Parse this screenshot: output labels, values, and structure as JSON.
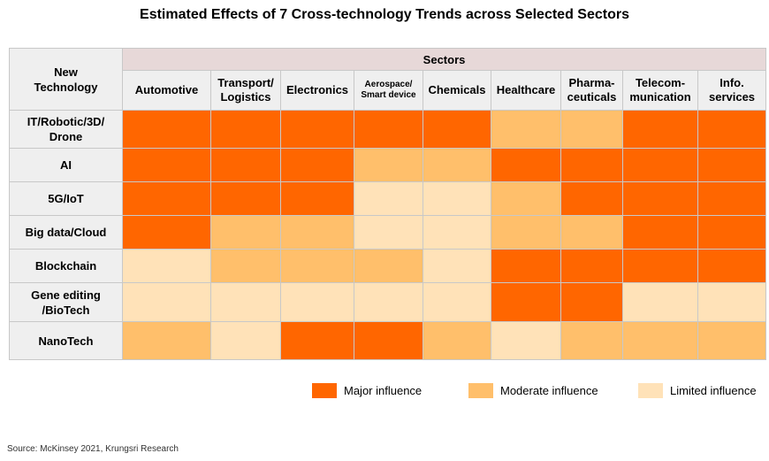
{
  "chart_data": {
    "type": "heatmap",
    "title": "Estimated Effects of 7 Cross-technology Trends across Selected Sectors",
    "row_header": "New Technology",
    "column_group_header": "Sectors",
    "columns": [
      "Automotive",
      "Transport/ Logistics",
      "Electronics",
      "Aerospace/ Smart device",
      "Chemicals",
      "Healthcare",
      "Pharma-ceuticals",
      "Telecom-munication",
      "Info. services"
    ],
    "rows": [
      "IT/Robotic/3D/ Drone",
      "AI",
      "5G/IoT",
      "Big data/Cloud",
      "Blockchain",
      "Gene editing /BioTech",
      "NanoTech"
    ],
    "levels": [
      "Major influence",
      "Moderate influence",
      "Limited influence"
    ],
    "colors": {
      "Major influence": "#ff6600",
      "Moderate influence": "#ffbf6b",
      "Limited influence": "#ffe2b8"
    },
    "values": [
      [
        "Major influence",
        "Major influence",
        "Major influence",
        "Major influence",
        "Major influence",
        "Moderate influence",
        "Moderate influence",
        "Major influence",
        "Major influence"
      ],
      [
        "Major influence",
        "Major influence",
        "Major influence",
        "Moderate influence",
        "Moderate influence",
        "Major influence",
        "Major influence",
        "Major influence",
        "Major influence"
      ],
      [
        "Major influence",
        "Major influence",
        "Major influence",
        "Limited influence",
        "Limited influence",
        "Moderate influence",
        "Major influence",
        "Major influence",
        "Major influence"
      ],
      [
        "Major influence",
        "Moderate influence",
        "Moderate influence",
        "Limited influence",
        "Limited influence",
        "Moderate influence",
        "Moderate influence",
        "Major influence",
        "Major influence"
      ],
      [
        "Limited influence",
        "Moderate influence",
        "Moderate influence",
        "Moderate influence",
        "Limited influence",
        "Major influence",
        "Major influence",
        "Major influence",
        "Major influence"
      ],
      [
        "Limited influence",
        "Limited influence",
        "Limited influence",
        "Limited influence",
        "Limited influence",
        "Major influence",
        "Major influence",
        "Limited influence",
        "Limited influence"
      ],
      [
        "Moderate influence",
        "Limited influence",
        "Major influence",
        "Major influence",
        "Moderate influence",
        "Limited influence",
        "Moderate influence",
        "Moderate influence",
        "Moderate influence"
      ]
    ]
  },
  "source": "Source: McKinsey 2021, Krungsri Research"
}
